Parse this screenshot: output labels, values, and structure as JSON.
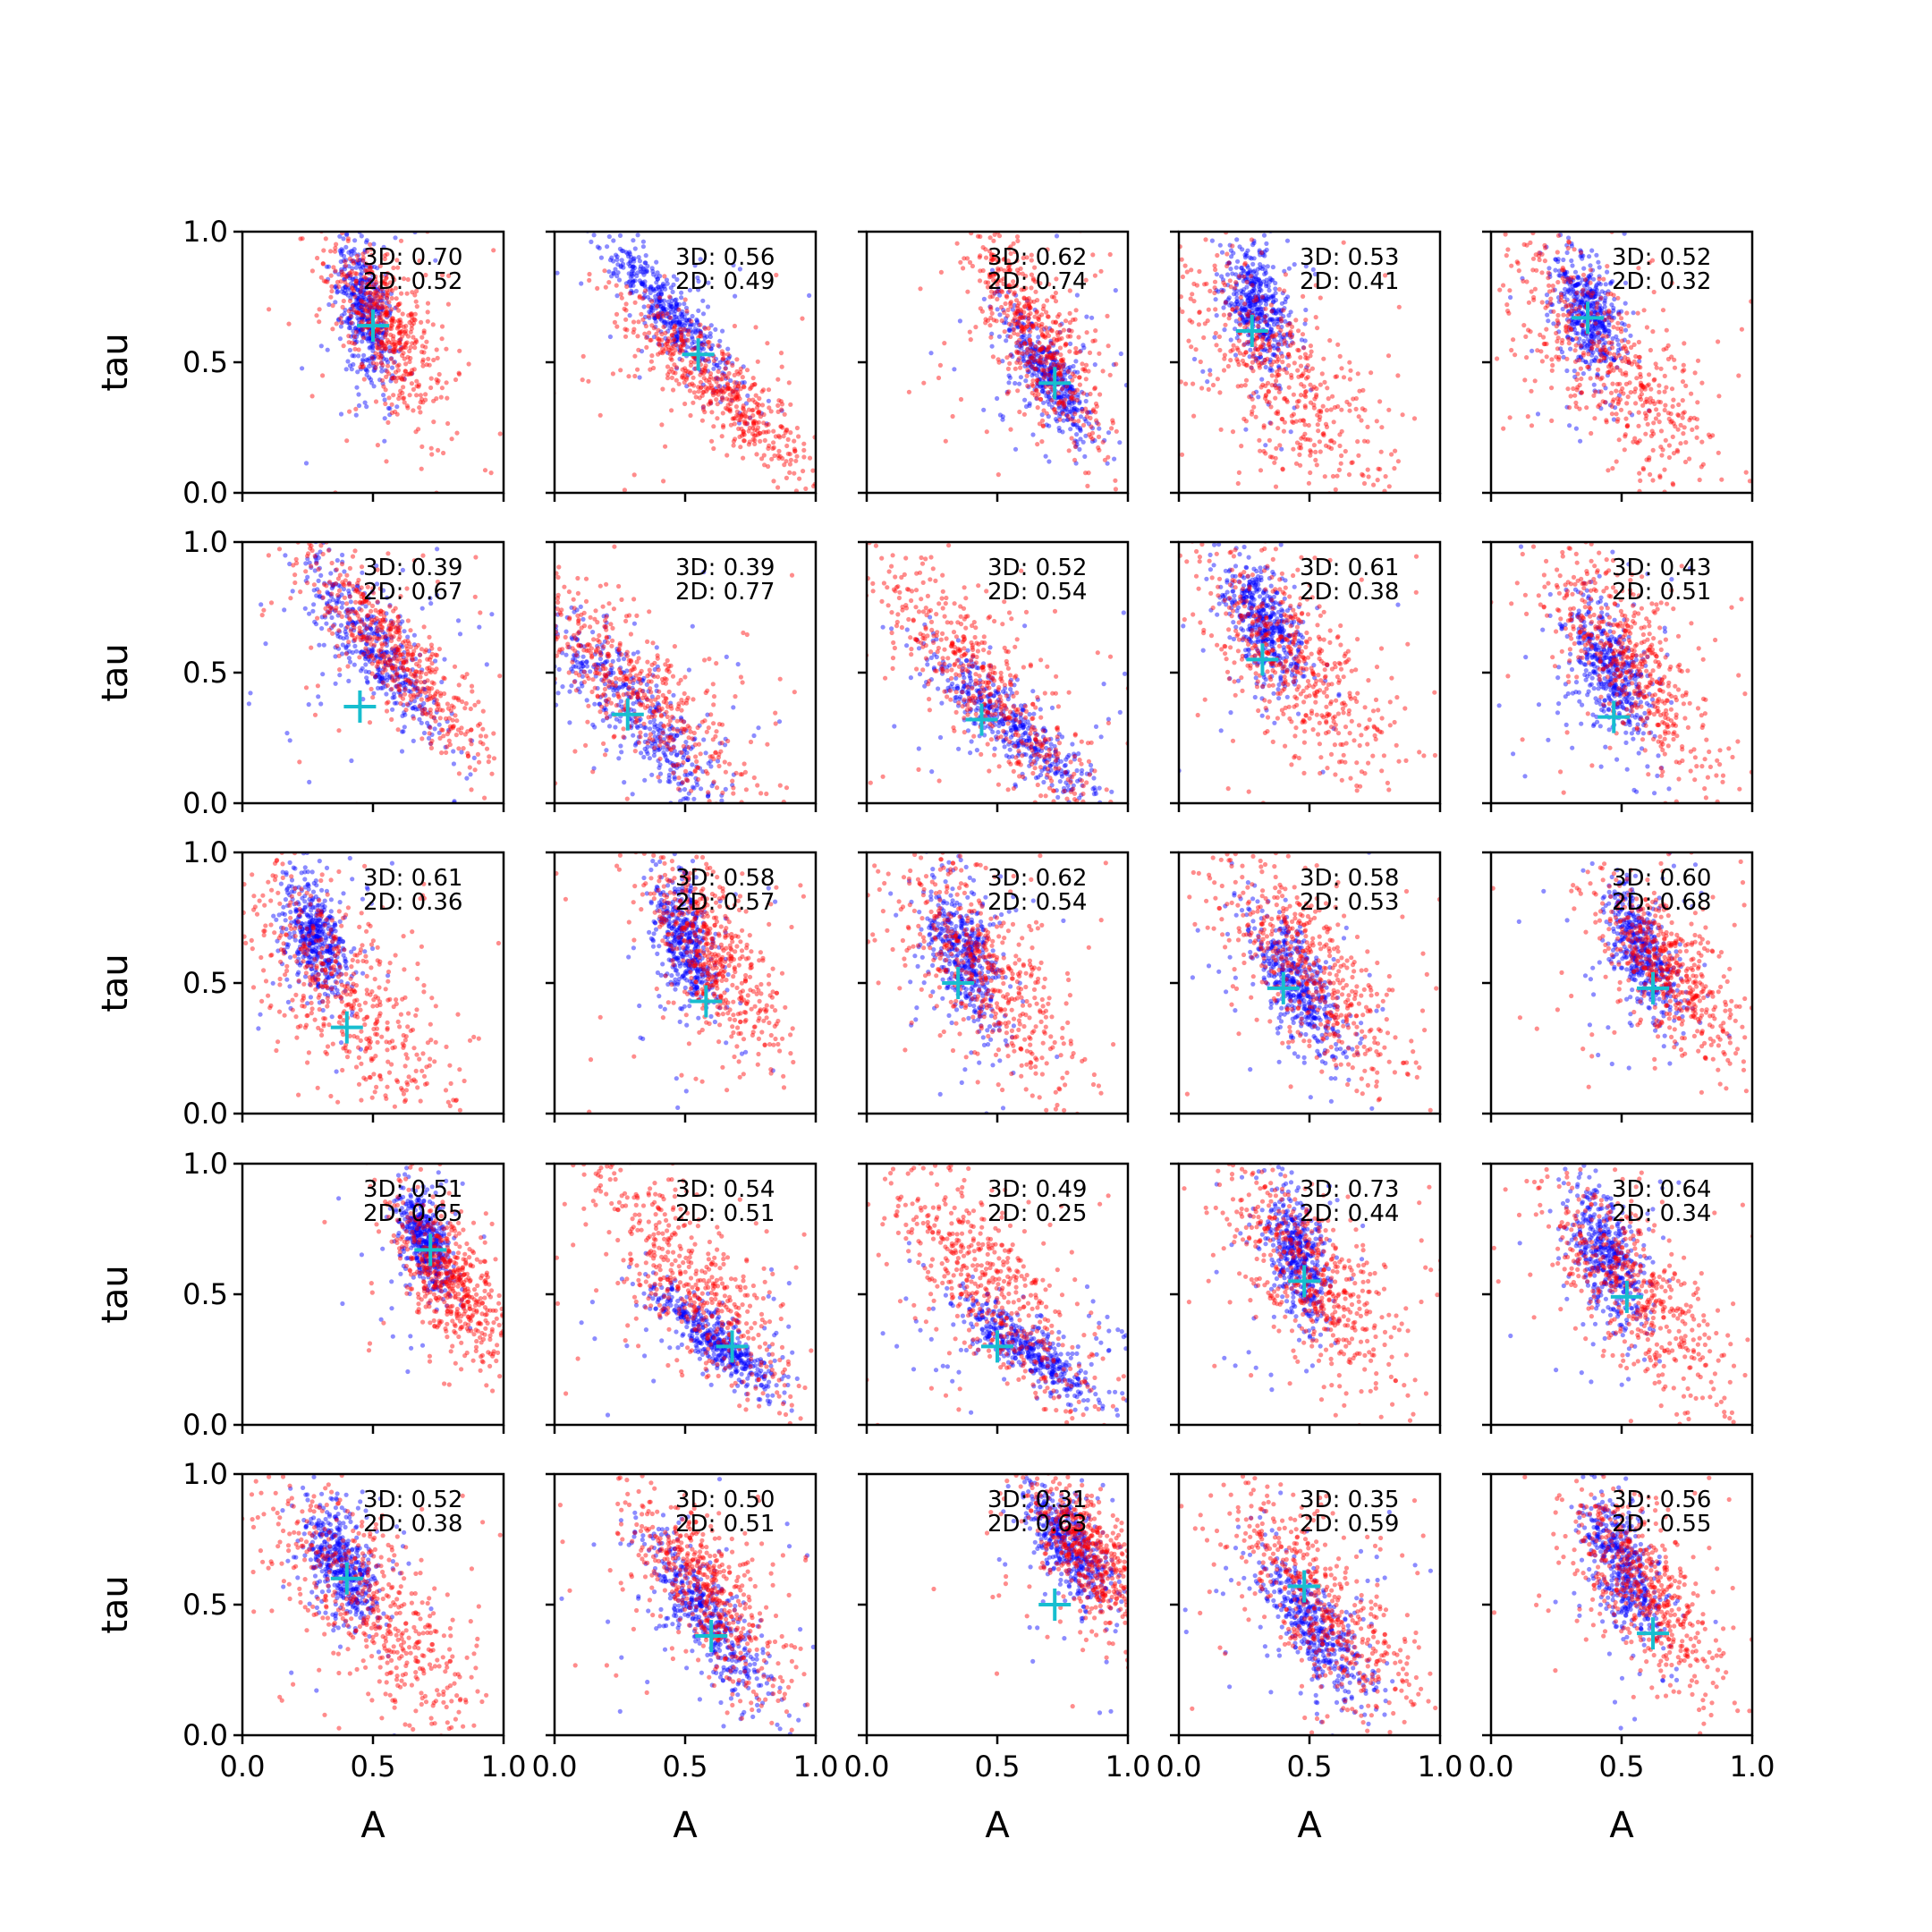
{
  "chart_data": {
    "type": "scatter",
    "layout": "5x5 grid of scatter subplots",
    "xlabel": "A",
    "ylabel": "tau",
    "xlim": [
      0.0,
      1.0
    ],
    "ylim": [
      0.0,
      1.0
    ],
    "xticks": [
      "0.0",
      "0.5",
      "1.0"
    ],
    "yticks": [
      "0.0",
      "0.5",
      "1.0"
    ],
    "grid": false,
    "colors": {
      "series_3d": "#0000ff",
      "series_2d": "#ff0000",
      "marker": "#17becf"
    },
    "series_style": [
      {
        "color": "#0000ff",
        "marker": "dot",
        "alpha": 0.45
      },
      {
        "color": "#ff0000",
        "marker": "dot",
        "alpha": 0.45
      },
      {
        "color": "#17becf",
        "marker": "plus"
      }
    ],
    "panels": [
      {
        "row": 1,
        "col": 1,
        "stat_3d": "3D: 0.70",
        "stat_2d": "2D: 0.52",
        "marker": {
          "A": 0.5,
          "tau": 0.64
        },
        "blue": {
          "center": [
            0.47,
            0.7
          ],
          "spread_a": 0.05,
          "spread_t": 0.2,
          "slope": -1.4
        },
        "red": {
          "center": [
            0.55,
            0.65
          ],
          "spread_a": 0.11,
          "spread_t": 0.25,
          "slope": -1.2
        }
      },
      {
        "row": 1,
        "col": 2,
        "stat_3d": "3D: 0.56",
        "stat_2d": "2D: 0.49",
        "marker": {
          "A": 0.55,
          "tau": 0.53
        },
        "blue": {
          "center": [
            0.42,
            0.72
          ],
          "spread_a": 0.13,
          "spread_t": 0.1,
          "slope": -1.2
        },
        "red": {
          "center": [
            0.62,
            0.4
          ],
          "spread_a": 0.18,
          "spread_t": 0.12,
          "slope": -0.9
        }
      },
      {
        "row": 1,
        "col": 3,
        "stat_3d": "3D: 0.62",
        "stat_2d": "2D: 0.74",
        "marker": {
          "A": 0.72,
          "tau": 0.42
        },
        "blue": {
          "center": [
            0.7,
            0.45
          ],
          "spread_a": 0.08,
          "spread_t": 0.12,
          "slope": -1.3
        },
        "red": {
          "center": [
            0.65,
            0.6
          ],
          "spread_a": 0.12,
          "spread_t": 0.22,
          "slope": -1.3
        }
      },
      {
        "row": 1,
        "col": 4,
        "stat_3d": "3D: 0.53",
        "stat_2d": "2D: 0.41",
        "marker": {
          "A": 0.28,
          "tau": 0.62
        },
        "blue": {
          "center": [
            0.3,
            0.72
          ],
          "spread_a": 0.06,
          "spread_t": 0.18,
          "slope": -0.8
        },
        "red": {
          "center": [
            0.4,
            0.45
          ],
          "spread_a": 0.2,
          "spread_t": 0.3,
          "slope": -1.0
        }
      },
      {
        "row": 1,
        "col": 5,
        "stat_3d": "3D: 0.52",
        "stat_2d": "2D: 0.32",
        "marker": {
          "A": 0.37,
          "tau": 0.67
        },
        "blue": {
          "center": [
            0.37,
            0.68
          ],
          "spread_a": 0.06,
          "spread_t": 0.2,
          "slope": -0.8
        },
        "red": {
          "center": [
            0.45,
            0.5
          ],
          "spread_a": 0.2,
          "spread_t": 0.3,
          "slope": -1.0
        }
      },
      {
        "row": 2,
        "col": 1,
        "stat_3d": "3D: 0.39",
        "stat_2d": "2D: 0.67",
        "marker": {
          "A": 0.45,
          "tau": 0.37
        },
        "blue": {
          "center": [
            0.5,
            0.6
          ],
          "spread_a": 0.14,
          "spread_t": 0.14,
          "slope": -1.2
        },
        "red": {
          "center": [
            0.6,
            0.55
          ],
          "spread_a": 0.18,
          "spread_t": 0.16,
          "slope": -1.1
        }
      },
      {
        "row": 2,
        "col": 2,
        "stat_3d": "3D: 0.39",
        "stat_2d": "2D: 0.77",
        "marker": {
          "A": 0.28,
          "tau": 0.34
        },
        "blue": {
          "center": [
            0.3,
            0.35
          ],
          "spread_a": 0.2,
          "spread_t": 0.16,
          "slope": -1.1
        },
        "red": {
          "center": [
            0.35,
            0.4
          ],
          "spread_a": 0.25,
          "spread_t": 0.2,
          "slope": -1.0
        }
      },
      {
        "row": 2,
        "col": 3,
        "stat_3d": "3D: 0.52",
        "stat_2d": "2D: 0.54",
        "marker": {
          "A": 0.44,
          "tau": 0.32
        },
        "blue": {
          "center": [
            0.55,
            0.3
          ],
          "spread_a": 0.16,
          "spread_t": 0.1,
          "slope": -0.9
        },
        "red": {
          "center": [
            0.45,
            0.45
          ],
          "spread_a": 0.22,
          "spread_t": 0.22,
          "slope": -1.1
        }
      },
      {
        "row": 2,
        "col": 4,
        "stat_3d": "3D: 0.61",
        "stat_2d": "2D: 0.38",
        "marker": {
          "A": 0.32,
          "tau": 0.55
        },
        "blue": {
          "center": [
            0.33,
            0.68
          ],
          "spread_a": 0.07,
          "spread_t": 0.18,
          "slope": -0.9
        },
        "red": {
          "center": [
            0.42,
            0.55
          ],
          "spread_a": 0.2,
          "spread_t": 0.28,
          "slope": -1.0
        }
      },
      {
        "row": 2,
        "col": 5,
        "stat_3d": "3D: 0.43",
        "stat_2d": "2D: 0.51",
        "marker": {
          "A": 0.47,
          "tau": 0.33
        },
        "blue": {
          "center": [
            0.45,
            0.5
          ],
          "spread_a": 0.08,
          "spread_t": 0.2,
          "slope": -1.2
        },
        "red": {
          "center": [
            0.52,
            0.55
          ],
          "spread_a": 0.16,
          "spread_t": 0.24,
          "slope": -1.1
        }
      },
      {
        "row": 3,
        "col": 1,
        "stat_3d": "3D: 0.61",
        "stat_2d": "2D: 0.36",
        "marker": {
          "A": 0.4,
          "tau": 0.33
        },
        "blue": {
          "center": [
            0.28,
            0.68
          ],
          "spread_a": 0.06,
          "spread_t": 0.18,
          "slope": -0.8
        },
        "red": {
          "center": [
            0.4,
            0.45
          ],
          "spread_a": 0.2,
          "spread_t": 0.3,
          "slope": -1.0
        }
      },
      {
        "row": 3,
        "col": 2,
        "stat_3d": "3D: 0.58",
        "stat_2d": "2D: 0.57",
        "marker": {
          "A": 0.58,
          "tau": 0.43
        },
        "blue": {
          "center": [
            0.5,
            0.65
          ],
          "spread_a": 0.06,
          "spread_t": 0.2,
          "slope": -1.2
        },
        "red": {
          "center": [
            0.6,
            0.62
          ],
          "spread_a": 0.12,
          "spread_t": 0.24,
          "slope": -1.1
        }
      },
      {
        "row": 3,
        "col": 3,
        "stat_3d": "3D: 0.62",
        "stat_2d": "2D: 0.54",
        "marker": {
          "A": 0.35,
          "tau": 0.5
        },
        "blue": {
          "center": [
            0.37,
            0.6
          ],
          "spread_a": 0.07,
          "spread_t": 0.22,
          "slope": -1.1
        },
        "red": {
          "center": [
            0.45,
            0.55
          ],
          "spread_a": 0.18,
          "spread_t": 0.28,
          "slope": -1.0
        }
      },
      {
        "row": 3,
        "col": 4,
        "stat_3d": "3D: 0.58",
        "stat_2d": "2D: 0.53",
        "marker": {
          "A": 0.4,
          "tau": 0.48
        },
        "blue": {
          "center": [
            0.45,
            0.5
          ],
          "spread_a": 0.09,
          "spread_t": 0.18,
          "slope": -1.2
        },
        "red": {
          "center": [
            0.5,
            0.55
          ],
          "spread_a": 0.18,
          "spread_t": 0.26,
          "slope": -1.0
        }
      },
      {
        "row": 3,
        "col": 5,
        "stat_3d": "3D: 0.60",
        "stat_2d": "2D: 0.68",
        "marker": {
          "A": 0.62,
          "tau": 0.48
        },
        "blue": {
          "center": [
            0.58,
            0.62
          ],
          "spread_a": 0.07,
          "spread_t": 0.18,
          "slope": -1.2
        },
        "red": {
          "center": [
            0.68,
            0.55
          ],
          "spread_a": 0.13,
          "spread_t": 0.22,
          "slope": -1.0
        }
      },
      {
        "row": 4,
        "col": 1,
        "stat_3d": "3D: 0.51",
        "stat_2d": "2D: 0.65",
        "marker": {
          "A": 0.72,
          "tau": 0.67
        },
        "blue": {
          "center": [
            0.7,
            0.7
          ],
          "spread_a": 0.05,
          "spread_t": 0.14,
          "slope": -1.2
        },
        "red": {
          "center": [
            0.8,
            0.55
          ],
          "spread_a": 0.1,
          "spread_t": 0.22,
          "slope": -1.1
        }
      },
      {
        "row": 4,
        "col": 2,
        "stat_3d": "3D: 0.54",
        "stat_2d": "2D: 0.51",
        "marker": {
          "A": 0.68,
          "tau": 0.3
        },
        "blue": {
          "center": [
            0.62,
            0.32
          ],
          "spread_a": 0.12,
          "spread_t": 0.08,
          "slope": -0.8
        },
        "red": {
          "center": [
            0.52,
            0.55
          ],
          "spread_a": 0.2,
          "spread_t": 0.25,
          "slope": -1.1
        }
      },
      {
        "row": 4,
        "col": 3,
        "stat_3d": "3D: 0.49",
        "stat_2d": "2D: 0.25",
        "marker": {
          "A": 0.5,
          "tau": 0.3
        },
        "blue": {
          "center": [
            0.62,
            0.28
          ],
          "spread_a": 0.14,
          "spread_t": 0.08,
          "slope": -0.7
        },
        "red": {
          "center": [
            0.45,
            0.55
          ],
          "spread_a": 0.2,
          "spread_t": 0.26,
          "slope": -1.1
        }
      },
      {
        "row": 4,
        "col": 4,
        "stat_3d": "3D: 0.73",
        "stat_2d": "2D: 0.44",
        "marker": {
          "A": 0.48,
          "tau": 0.55
        },
        "blue": {
          "center": [
            0.45,
            0.65
          ],
          "spread_a": 0.06,
          "spread_t": 0.2,
          "slope": -1.1
        },
        "red": {
          "center": [
            0.52,
            0.55
          ],
          "spread_a": 0.16,
          "spread_t": 0.26,
          "slope": -1.0
        }
      },
      {
        "row": 4,
        "col": 5,
        "stat_3d": "3D: 0.64",
        "stat_2d": "2D: 0.34",
        "marker": {
          "A": 0.52,
          "tau": 0.49
        },
        "blue": {
          "center": [
            0.45,
            0.65
          ],
          "spread_a": 0.07,
          "spread_t": 0.2,
          "slope": -1.1
        },
        "red": {
          "center": [
            0.52,
            0.55
          ],
          "spread_a": 0.18,
          "spread_t": 0.28,
          "slope": -1.0
        }
      },
      {
        "row": 5,
        "col": 1,
        "stat_3d": "3D: 0.52",
        "stat_2d": "2D: 0.38",
        "marker": {
          "A": 0.4,
          "tau": 0.6
        },
        "blue": {
          "center": [
            0.38,
            0.65
          ],
          "spread_a": 0.07,
          "spread_t": 0.18,
          "slope": -1.0
        },
        "red": {
          "center": [
            0.48,
            0.5
          ],
          "spread_a": 0.2,
          "spread_t": 0.28,
          "slope": -1.0
        }
      },
      {
        "row": 5,
        "col": 2,
        "stat_3d": "3D: 0.50",
        "stat_2d": "2D: 0.51",
        "marker": {
          "A": 0.6,
          "tau": 0.38
        },
        "blue": {
          "center": [
            0.58,
            0.45
          ],
          "spread_a": 0.12,
          "spread_t": 0.16,
          "slope": -1.2
        },
        "red": {
          "center": [
            0.58,
            0.55
          ],
          "spread_a": 0.15,
          "spread_t": 0.22,
          "slope": -1.1
        }
      },
      {
        "row": 5,
        "col": 3,
        "stat_3d": "3D: 0.31",
        "stat_2d": "2D: 0.63",
        "marker": {
          "A": 0.72,
          "tau": 0.5
        },
        "blue": {
          "center": [
            0.78,
            0.72
          ],
          "spread_a": 0.08,
          "spread_t": 0.14,
          "slope": -1.0
        },
        "red": {
          "center": [
            0.85,
            0.7
          ],
          "spread_a": 0.1,
          "spread_t": 0.18,
          "slope": -1.0
        }
      },
      {
        "row": 5,
        "col": 4,
        "stat_3d": "3D: 0.35",
        "stat_2d": "2D: 0.59",
        "marker": {
          "A": 0.48,
          "tau": 0.57
        },
        "blue": {
          "center": [
            0.52,
            0.42
          ],
          "spread_a": 0.11,
          "spread_t": 0.16,
          "slope": -1.1
        },
        "red": {
          "center": [
            0.55,
            0.5
          ],
          "spread_a": 0.18,
          "spread_t": 0.24,
          "slope": -1.0
        }
      },
      {
        "row": 5,
        "col": 5,
        "stat_3d": "3D: 0.56",
        "stat_2d": "2D: 0.55",
        "marker": {
          "A": 0.62,
          "tau": 0.39
        },
        "blue": {
          "center": [
            0.5,
            0.65
          ],
          "spread_a": 0.07,
          "spread_t": 0.2,
          "slope": -1.2
        },
        "red": {
          "center": [
            0.58,
            0.58
          ],
          "spread_a": 0.15,
          "spread_t": 0.24,
          "slope": -1.1
        }
      }
    ]
  }
}
